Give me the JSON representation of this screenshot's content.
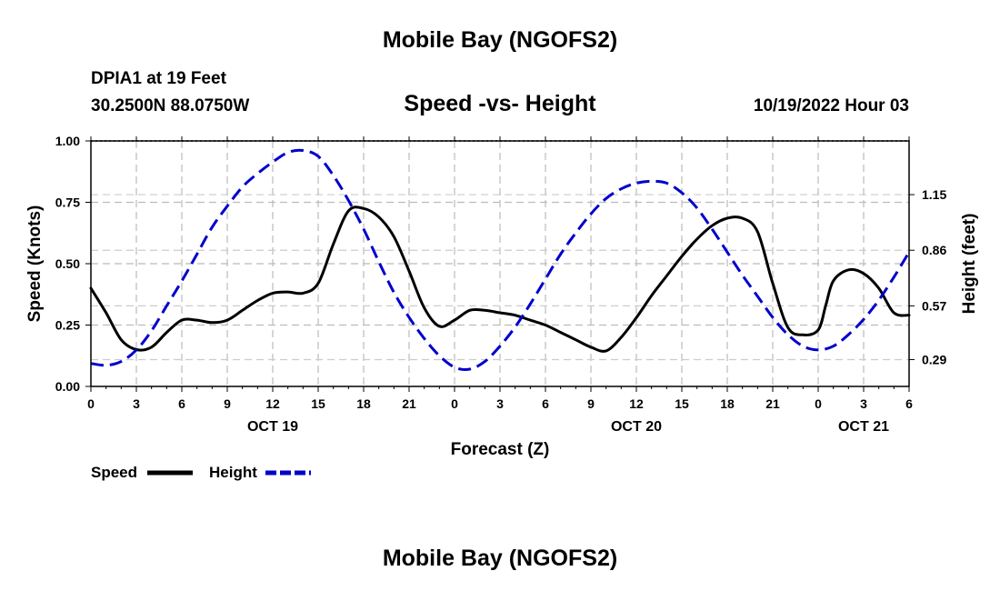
{
  "header": {
    "title": "Mobile Bay (NGOFS2)",
    "station": "DPIA1 at 19 Feet",
    "coords": "30.2500N  88.0750W",
    "subtitle": "Speed -vs- Height",
    "datetime": "10/19/2022 Hour 03",
    "bottom_title": "Mobile Bay (NGOFS2)"
  },
  "chart_data": {
    "type": "line",
    "title": "Speed -vs- Height",
    "xlabel": "Forecast (Z)",
    "ylabel": "Speed (Knots)",
    "y2label": "Height (feet)",
    "xlim": [
      0,
      54
    ],
    "ylim": [
      0,
      1.0
    ],
    "y2lim": [
      0.15,
      1.43
    ],
    "x_ticks": [
      0,
      3,
      6,
      9,
      12,
      15,
      18,
      21,
      24,
      27,
      30,
      33,
      36,
      39,
      42,
      45,
      48,
      51,
      54
    ],
    "x_tick_labels": [
      "0",
      "3",
      "6",
      "9",
      "12",
      "15",
      "18",
      "21",
      "0",
      "3",
      "6",
      "9",
      "12",
      "15",
      "18",
      "21",
      "0",
      "3",
      "6"
    ],
    "date_labels": [
      {
        "x": 12,
        "text": "OCT 19"
      },
      {
        "x": 36,
        "text": "OCT 20"
      },
      {
        "x": 51,
        "text": "OCT 21"
      }
    ],
    "y_ticks": [
      0,
      0.25,
      0.5,
      0.75,
      1.0
    ],
    "y_tick_labels": [
      "0.00",
      "0.25",
      "0.50",
      "0.75",
      "1.00"
    ],
    "y2_ticks": [
      0.29,
      0.57,
      0.86,
      1.15
    ],
    "y2_tick_labels": [
      "0.29",
      "0.57",
      "0.86",
      "1.15"
    ],
    "grid": true,
    "legend": [
      {
        "name": "Speed",
        "color": "#000000",
        "style": "solid"
      },
      {
        "name": "Height",
        "color": "#0000cc",
        "style": "dashed"
      }
    ],
    "series": [
      {
        "name": "Speed",
        "axis": "left",
        "color": "#000000",
        "x": [
          0,
          1,
          2,
          3,
          4,
          5,
          6,
          7,
          8,
          9,
          10,
          11,
          12,
          13,
          14,
          15,
          16,
          17,
          18,
          19,
          20,
          21,
          22,
          23,
          24,
          25,
          26,
          27,
          28,
          29,
          30,
          31,
          32,
          33,
          34,
          35,
          36,
          37,
          38,
          39,
          40,
          41,
          42,
          43,
          44,
          45,
          46,
          47,
          48,
          48.5,
          49,
          50,
          51,
          52,
          53,
          54
        ],
        "y": [
          0.4,
          0.3,
          0.19,
          0.15,
          0.16,
          0.22,
          0.27,
          0.27,
          0.26,
          0.27,
          0.31,
          0.35,
          0.38,
          0.385,
          0.38,
          0.42,
          0.58,
          0.715,
          0.725,
          0.69,
          0.61,
          0.47,
          0.32,
          0.245,
          0.27,
          0.31,
          0.31,
          0.3,
          0.29,
          0.27,
          0.25,
          0.22,
          0.19,
          0.16,
          0.145,
          0.2,
          0.28,
          0.37,
          0.45,
          0.53,
          0.6,
          0.655,
          0.685,
          0.685,
          0.63,
          0.42,
          0.24,
          0.21,
          0.23,
          0.33,
          0.43,
          0.475,
          0.46,
          0.4,
          0.3,
          0.29
        ]
      },
      {
        "name": "Height",
        "axis": "right",
        "color": "#0000cc",
        "x": [
          0,
          1,
          2,
          3,
          4,
          5,
          6,
          7,
          8,
          9,
          10,
          11,
          12,
          13,
          14,
          15,
          16,
          17,
          18,
          19,
          20,
          21,
          22,
          23,
          24,
          25,
          26,
          27,
          28,
          29,
          30,
          31,
          32,
          33,
          34,
          35,
          36,
          37,
          38,
          39,
          40,
          41,
          42,
          43,
          44,
          45,
          46,
          47,
          48,
          49,
          50,
          51,
          52,
          53,
          54
        ],
        "y": [
          0.27,
          0.26,
          0.28,
          0.34,
          0.44,
          0.57,
          0.7,
          0.84,
          0.98,
          1.09,
          1.19,
          1.26,
          1.32,
          1.37,
          1.38,
          1.35,
          1.25,
          1.12,
          0.97,
          0.8,
          0.64,
          0.51,
          0.4,
          0.31,
          0.25,
          0.24,
          0.28,
          0.36,
          0.46,
          0.58,
          0.71,
          0.84,
          0.95,
          1.05,
          1.13,
          1.18,
          1.21,
          1.22,
          1.21,
          1.16,
          1.08,
          0.97,
          0.85,
          0.73,
          0.62,
          0.51,
          0.42,
          0.36,
          0.34,
          0.36,
          0.42,
          0.5,
          0.6,
          0.72,
          0.85
        ]
      }
    ]
  }
}
